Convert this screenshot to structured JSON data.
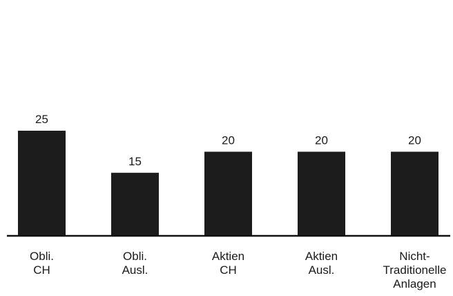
{
  "chart_data": {
    "type": "bar",
    "categories": [
      [
        "Obli.",
        "CH"
      ],
      [
        "Obli.",
        "Ausl."
      ],
      [
        "Aktien",
        "CH"
      ],
      [
        "Aktien",
        "Ausl."
      ],
      [
        "Nicht-",
        "Traditionelle",
        "Anlagen"
      ]
    ],
    "values": [
      25,
      15,
      20,
      20,
      20
    ],
    "value_labels": [
      "25",
      "15",
      "20",
      "20",
      "20"
    ],
    "title": "",
    "xlabel": "",
    "ylabel": "",
    "ylim": [
      0,
      25
    ],
    "grid": false,
    "legend": "none",
    "colors": {
      "bar": "#1c1c1c",
      "axis": "#111111",
      "text": "#1a1a1a"
    }
  }
}
